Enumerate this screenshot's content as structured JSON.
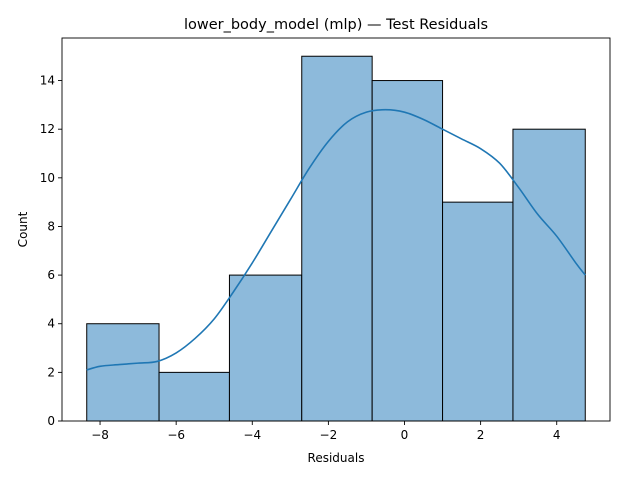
{
  "chart_data": {
    "type": "bar",
    "title": "lower_body_model (mlp) — Test Residuals",
    "xlabel": "Residuals",
    "ylabel": "Count",
    "bins": [
      {
        "x0": -8.35,
        "x1": -6.45,
        "count": 4
      },
      {
        "x0": -6.45,
        "x1": -4.6,
        "count": 2
      },
      {
        "x0": -4.6,
        "x1": -2.7,
        "count": 6
      },
      {
        "x0": -2.7,
        "x1": -0.85,
        "count": 15
      },
      {
        "x0": -0.85,
        "x1": 1.0,
        "count": 14
      },
      {
        "x0": 1.0,
        "x1": 2.85,
        "count": 9
      },
      {
        "x0": 2.85,
        "x1": 4.75,
        "count": 12
      }
    ],
    "kde": {
      "x": [
        -8.35,
        -8.0,
        -7.5,
        -7.0,
        -6.5,
        -6.0,
        -5.5,
        -5.0,
        -4.5,
        -4.0,
        -3.5,
        -3.0,
        -2.5,
        -2.0,
        -1.5,
        -1.0,
        -0.5,
        0.0,
        0.5,
        1.0,
        1.5,
        2.0,
        2.5,
        3.0,
        3.5,
        4.0,
        4.5,
        4.75
      ],
      "y": [
        2.1,
        2.25,
        2.32,
        2.38,
        2.45,
        2.8,
        3.4,
        4.2,
        5.3,
        6.5,
        7.8,
        9.1,
        10.4,
        11.5,
        12.3,
        12.7,
        12.8,
        12.7,
        12.4,
        12.0,
        11.6,
        11.2,
        10.6,
        9.6,
        8.5,
        7.6,
        6.5,
        6.0
      ]
    },
    "xticks": [
      -8,
      -6,
      -4,
      -2,
      0,
      2,
      4
    ],
    "yticks": [
      0,
      2,
      4,
      6,
      8,
      10,
      12,
      14
    ],
    "xlim": [
      -9.0,
      5.4
    ],
    "ylim": [
      0,
      15.75
    ],
    "colors": {
      "bar_fill": "#8dbadb",
      "bar_edge": "#000000",
      "kde_line": "#1f77b4"
    }
  }
}
